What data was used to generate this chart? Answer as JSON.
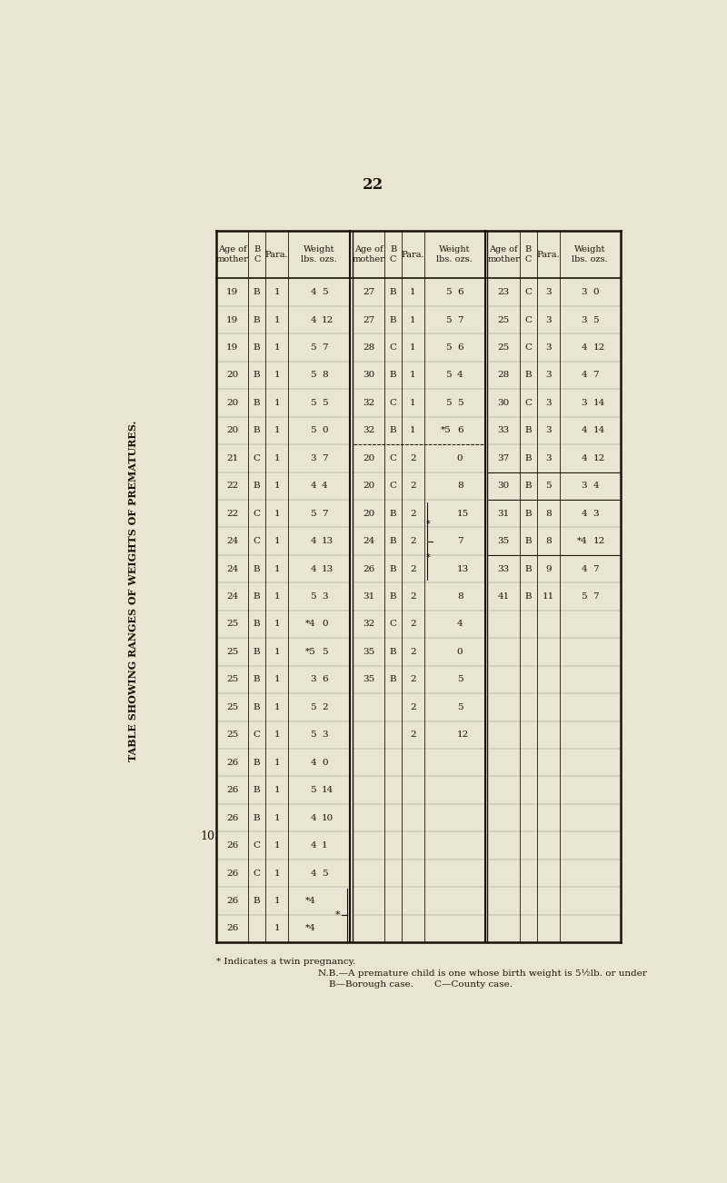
{
  "page_number": "22",
  "table_title": "TABLE SHOWING RANGES OF WEIGHTS OF PREMATURES.",
  "section_label": "10.",
  "bg_color": "#EAE4D3",
  "tc": "#1a1208",
  "footnote1": "* Indicates a twin pregnancy.",
  "footnote2": "N.B.—A premature child is one whose birth weight is 5½lb. or under",
  "footnote3": "B—Borough case.",
  "footnote4": "C—County case.",
  "col_header_labels": [
    "Age of\nmother",
    "B\nC",
    "Para.",
    "Weight\nlbs. ozs."
  ],
  "sec1_rows": [
    [
      "19",
      "B",
      "1",
      "4",
      "5"
    ],
    [
      "19",
      "B",
      "1",
      "4",
      "12"
    ],
    [
      "19",
      "B",
      "1",
      "5",
      "7"
    ],
    [
      "20",
      "B",
      "1",
      "5",
      "8"
    ],
    [
      "20",
      "B",
      "1",
      "5",
      "5"
    ],
    [
      "20",
      "B",
      "1",
      "5",
      "0"
    ],
    [
      "21",
      "C",
      "1",
      "3",
      "7"
    ],
    [
      "22",
      "B",
      "1",
      "4",
      "4"
    ],
    [
      "22",
      "C",
      "1",
      "5",
      "7"
    ],
    [
      "24",
      "C",
      "1",
      "4",
      "13"
    ],
    [
      "24",
      "B",
      "1",
      "4",
      "13"
    ],
    [
      "24",
      "B",
      "1",
      "5",
      "3"
    ],
    [
      "25",
      "B",
      "1",
      "*4",
      "0"
    ],
    [
      "25",
      "B",
      "1",
      "*5",
      "5"
    ],
    [
      "25",
      "B",
      "1",
      "3",
      "6"
    ],
    [
      "25",
      "B",
      "1",
      "5",
      "2"
    ],
    [
      "25",
      "C",
      "1",
      "5",
      "3"
    ],
    [
      "26",
      "B",
      "1",
      "4",
      "0"
    ],
    [
      "26",
      "B",
      "1",
      "5",
      "14"
    ],
    [
      "26",
      "B",
      "1",
      "4",
      "10"
    ],
    [
      "26",
      "C",
      "1",
      "4",
      "1"
    ],
    [
      "26",
      "C",
      "1",
      "4",
      "5"
    ],
    [
      "26",
      "B",
      "1",
      "*4",
      ""
    ],
    [
      "26",
      "",
      "1",
      "*4",
      ""
    ]
  ],
  "sec2_rows": [
    [
      "27",
      "B",
      "1",
      "5",
      "6"
    ],
    [
      "27",
      "B",
      "1",
      "5",
      "7"
    ],
    [
      "28",
      "C",
      "1",
      "5",
      "6"
    ],
    [
      "30",
      "B",
      "1",
      "5",
      "4"
    ],
    [
      "32",
      "C",
      "1",
      "5",
      "5"
    ],
    [
      "32",
      "B",
      "1",
      "*5",
      "6"
    ],
    [
      "20",
      "C",
      "2",
      "",
      "0"
    ],
    [
      "20",
      "C",
      "2",
      "",
      "8"
    ],
    [
      "20",
      "B",
      "2",
      "",
      "15"
    ],
    [
      "24",
      "B",
      "2",
      "",
      "7"
    ],
    [
      "26",
      "B",
      "2",
      "",
      "13"
    ],
    [
      "31",
      "B",
      "2",
      "",
      "8"
    ],
    [
      "32",
      "C",
      "2",
      "",
      "4"
    ],
    [
      "35",
      "B",
      "2",
      "",
      "0"
    ],
    [
      "35",
      "B",
      "2",
      "",
      "5"
    ],
    [
      "",
      "",
      "2",
      "",
      "5"
    ],
    [
      "",
      "",
      "2",
      "",
      "12"
    ]
  ],
  "sec3_rows": [
    [
      "23",
      "C",
      "3",
      "3",
      "0"
    ],
    [
      "25",
      "C",
      "3",
      "3",
      "5"
    ],
    [
      "25",
      "C",
      "3",
      "4",
      "12"
    ],
    [
      "28",
      "B",
      "3",
      "4",
      "7"
    ],
    [
      "30",
      "C",
      "3",
      "3",
      "14"
    ],
    [
      "33",
      "B",
      "3",
      "4",
      "14"
    ],
    [
      "37",
      "B",
      "3",
      "4",
      "12"
    ],
    [
      "30",
      "B",
      "5",
      "3",
      "4"
    ],
    [
      "31",
      "B",
      "8",
      "4",
      "3"
    ],
    [
      "35",
      "B",
      "8",
      "*4",
      "12"
    ],
    [
      "33",
      "B",
      "9",
      "4",
      "7"
    ],
    [
      "41",
      "B",
      "11",
      "5",
      "7"
    ]
  ],
  "sec1_para2_divider_after": 5,
  "sec2_para2_divider_after": 5
}
